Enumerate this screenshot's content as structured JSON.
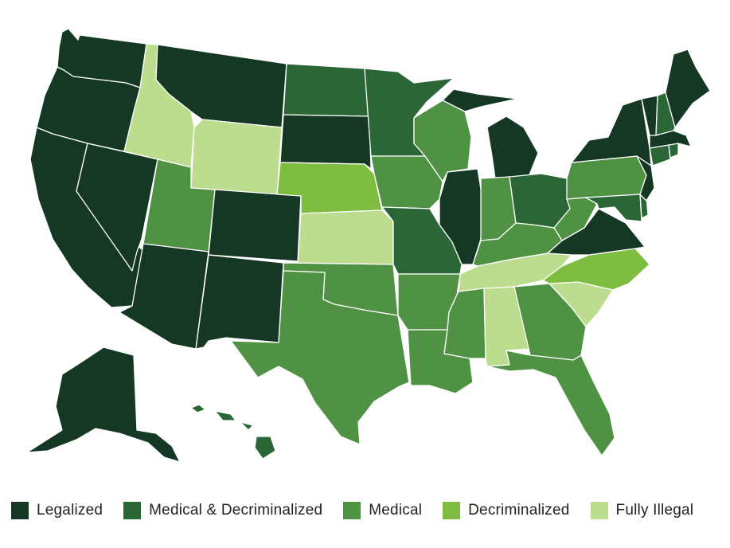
{
  "colors": {
    "legalized": "#143823",
    "medical_decrim": "#2a6636",
    "medical": "#4f9244",
    "decriminalized": "#7fbd41",
    "fully_illegal": "#bcdc8e"
  },
  "legend": [
    {
      "key": "legalized",
      "label": "Legalized"
    },
    {
      "key": "medical_decrim",
      "label": "Medical & Decriminalized"
    },
    {
      "key": "medical",
      "label": "Medical"
    },
    {
      "key": "decriminalized",
      "label": "Decriminalized"
    },
    {
      "key": "fully_illegal",
      "label": "Fully Illegal"
    }
  ],
  "states": {
    "WA": "legalized",
    "OR": "legalized",
    "CA": "legalized",
    "NV": "legalized",
    "ID": "fully_illegal",
    "MT": "legalized",
    "WY": "fully_illegal",
    "UT": "medical",
    "AZ": "legalized",
    "CO": "legalized",
    "NM": "legalized",
    "ND": "medical_decrim",
    "SD": "legalized",
    "NE": "decriminalized",
    "KS": "fully_illegal",
    "OK": "medical",
    "TX": "medical",
    "MN": "medical_decrim",
    "IA": "medical",
    "MO": "medical_decrim",
    "AR": "medical",
    "LA": "medical",
    "WI": "medical",
    "IL": "legalized",
    "MI": "legalized",
    "IN": "medical",
    "OH": "medical_decrim",
    "KY": "medical",
    "TN": "fully_illegal",
    "MS": "medical",
    "AL": "fully_illegal",
    "GA": "medical",
    "FL": "medical",
    "SC": "fully_illegal",
    "NC": "decriminalized",
    "VA": "legalized",
    "WV": "medical",
    "PA": "medical",
    "NY": "legalized",
    "VT": "legalized",
    "NH": "medical_decrim",
    "ME": "legalized",
    "MA": "legalized",
    "RI": "medical_decrim",
    "CT": "medical_decrim",
    "NJ": "legalized",
    "DE": "medical_decrim",
    "MD": "medical_decrim",
    "AK": "legalized",
    "HI": "medical_decrim"
  }
}
